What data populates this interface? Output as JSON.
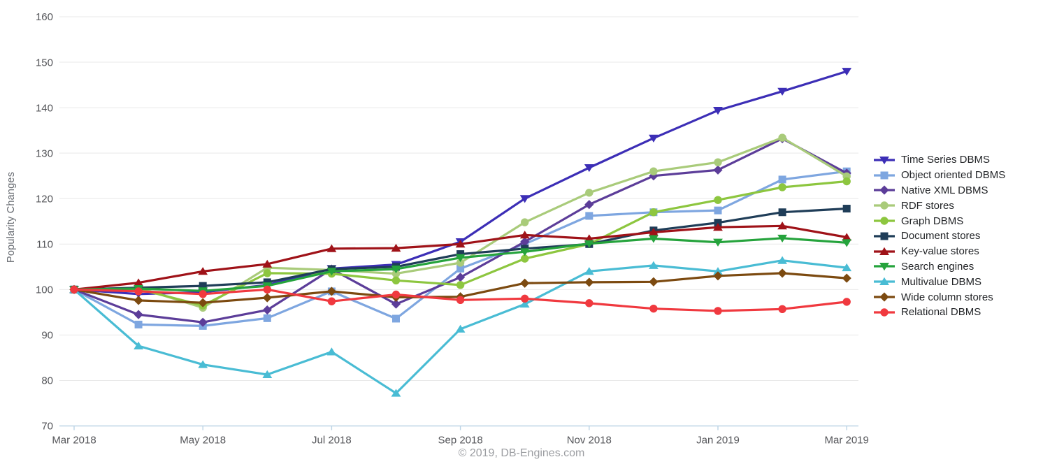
{
  "chart_data": {
    "type": "line",
    "title": "",
    "ylabel": "Popularity Changes",
    "footer": "© 2019, DB-Engines.com",
    "x": [
      "Mar 2018",
      "Apr 2018",
      "May 2018",
      "Jun 2018",
      "Jul 2018",
      "Aug 2018",
      "Sep 2018",
      "Oct 2018",
      "Nov 2018",
      "Dec 2018",
      "Jan 2019",
      "Feb 2019",
      "Mar 2019"
    ],
    "x_tick_labels": [
      "Mar 2018",
      "May 2018",
      "Jul 2018",
      "Sep 2018",
      "Nov 2018",
      "Jan 2019",
      "Mar 2019"
    ],
    "x_tick_indices": [
      0,
      2,
      4,
      6,
      8,
      10,
      12
    ],
    "ylim": [
      70,
      160
    ],
    "y_ticks": [
      70,
      80,
      90,
      100,
      110,
      120,
      130,
      140,
      150,
      160
    ],
    "grid": "horizontal",
    "legend_position": "right",
    "series": [
      {
        "name": "Time Series DBMS",
        "color": "#3c2eb6",
        "marker": "triangle-down",
        "values": [
          100,
          99,
          99.4,
          101,
          104.6,
          105.5,
          110.5,
          120,
          126.8,
          133.3,
          139.4,
          143.6,
          148
        ]
      },
      {
        "name": "Object oriented DBMS",
        "color": "#7ea6e0",
        "marker": "square",
        "values": [
          100,
          92.3,
          92,
          93.7,
          99.6,
          93.6,
          104.6,
          110,
          116.2,
          117,
          117.4,
          124.2,
          126
        ]
      },
      {
        "name": "Native XML DBMS",
        "color": "#5c3d99",
        "marker": "diamond",
        "values": [
          100,
          94.5,
          92.8,
          95.5,
          104.5,
          96.8,
          102.7,
          110.5,
          118.7,
          125,
          126.3,
          133.2,
          125.6
        ]
      },
      {
        "name": "RDF stores",
        "color": "#a9cb7a",
        "marker": "circle",
        "values": [
          100,
          100.4,
          96,
          104.8,
          104.3,
          103.5,
          105.9,
          114.8,
          121.3,
          126,
          128,
          133.4,
          124.9
        ]
      },
      {
        "name": "Graph DBMS",
        "color": "#8dc63f",
        "marker": "circle",
        "values": [
          100,
          100.1,
          96.5,
          103.6,
          103.5,
          102,
          101,
          106.8,
          110,
          117,
          119.7,
          122.5,
          123.8
        ]
      },
      {
        "name": "Document stores",
        "color": "#1f3d58",
        "marker": "square",
        "values": [
          100,
          100.4,
          100.8,
          101.6,
          104.5,
          105,
          107.8,
          109,
          110,
          113,
          114.7,
          117,
          117.8
        ]
      },
      {
        "name": "Key-value stores",
        "color": "#9f1218",
        "marker": "triangle-up",
        "values": [
          100,
          101.5,
          104,
          105.6,
          109,
          109.1,
          110,
          112,
          111.2,
          112.6,
          113.7,
          114,
          111.5
        ]
      },
      {
        "name": "Search engines",
        "color": "#25a33c",
        "marker": "triangle-down",
        "values": [
          100,
          100.2,
          99.7,
          100.8,
          104,
          104.5,
          107,
          108.3,
          110.1,
          111.2,
          110.4,
          111.3,
          110.3
        ]
      },
      {
        "name": "Multivalue DBMS",
        "color": "#49bcd4",
        "marker": "triangle-up",
        "values": [
          100,
          87.6,
          83.5,
          81.3,
          86.3,
          77.2,
          91.3,
          96.8,
          104,
          105.3,
          104,
          106.4,
          104.8
        ]
      },
      {
        "name": "Wide column stores",
        "color": "#7c4a10",
        "marker": "diamond",
        "values": [
          100,
          97.6,
          97.1,
          98.2,
          99.6,
          98.3,
          98.4,
          101.4,
          101.6,
          101.7,
          103,
          103.6,
          102.5
        ]
      },
      {
        "name": "Relational DBMS",
        "color": "#f0393f",
        "marker": "circle",
        "values": [
          100,
          99.6,
          99,
          100,
          97.4,
          98.9,
          97.7,
          98,
          97,
          95.8,
          95.3,
          95.7,
          97.3
        ]
      }
    ],
    "style_colors": {
      "grid_line": "#e9e9e9",
      "axis_line": "#bcd4e6",
      "tick_text": "#55565a",
      "legend_text": "#232528",
      "footer_text": "#9b9da1",
      "background": "#ffffff"
    }
  }
}
